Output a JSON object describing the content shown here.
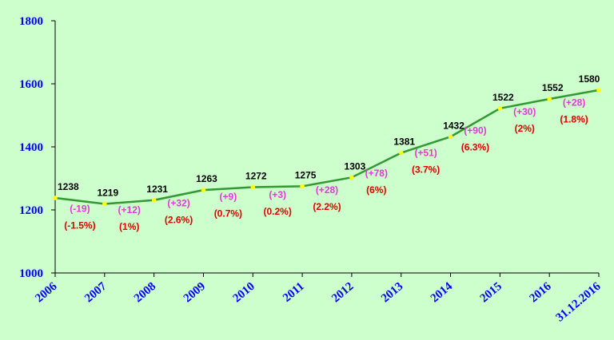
{
  "colors": {
    "background": "#ccffcc",
    "line": "#339933",
    "marker": "#ffff00",
    "axis_text": "#0000ff",
    "value_text": "#000000",
    "change_text": "#e23ad6",
    "percent_text": "#e00000"
  },
  "chart_data": {
    "type": "line",
    "title": "",
    "xlabel": "",
    "ylabel": "",
    "ylim": [
      1000,
      1800
    ],
    "yticks": [
      "1000",
      "1200",
      "1400",
      "1600",
      "1800"
    ],
    "grid": false,
    "categories": [
      "2006",
      "2007",
      "2008",
      "2009",
      "2010",
      "2011",
      "2012",
      "2013",
      "2014",
      "2015",
      "2016",
      "31.12.2016"
    ],
    "values": [
      1238,
      1219,
      1231,
      1263,
      1272,
      1275,
      1303,
      1381,
      1432,
      1522,
      1552,
      1580
    ],
    "value_labels": [
      "1238",
      "1219",
      "1231",
      "1263",
      "1272",
      "1275",
      "1303",
      "1381",
      "1432",
      "1522",
      "1552",
      "1580"
    ],
    "change_labels": [
      "(-19)",
      "(+12)",
      "(+32)",
      "(+9)",
      "(+3)",
      "(+28)",
      "(+78)",
      "(+51)",
      "(+90)",
      "(+30)",
      "(+28)"
    ],
    "percent_labels": [
      "(-1.5%)",
      "(1%)",
      "(2.6%)",
      "(0.7%)",
      "(0.2%)",
      "(2.2%)",
      "(6%)",
      "(3.7%)",
      "(6.3%)",
      "(2%)",
      "(1.8%)"
    ]
  }
}
